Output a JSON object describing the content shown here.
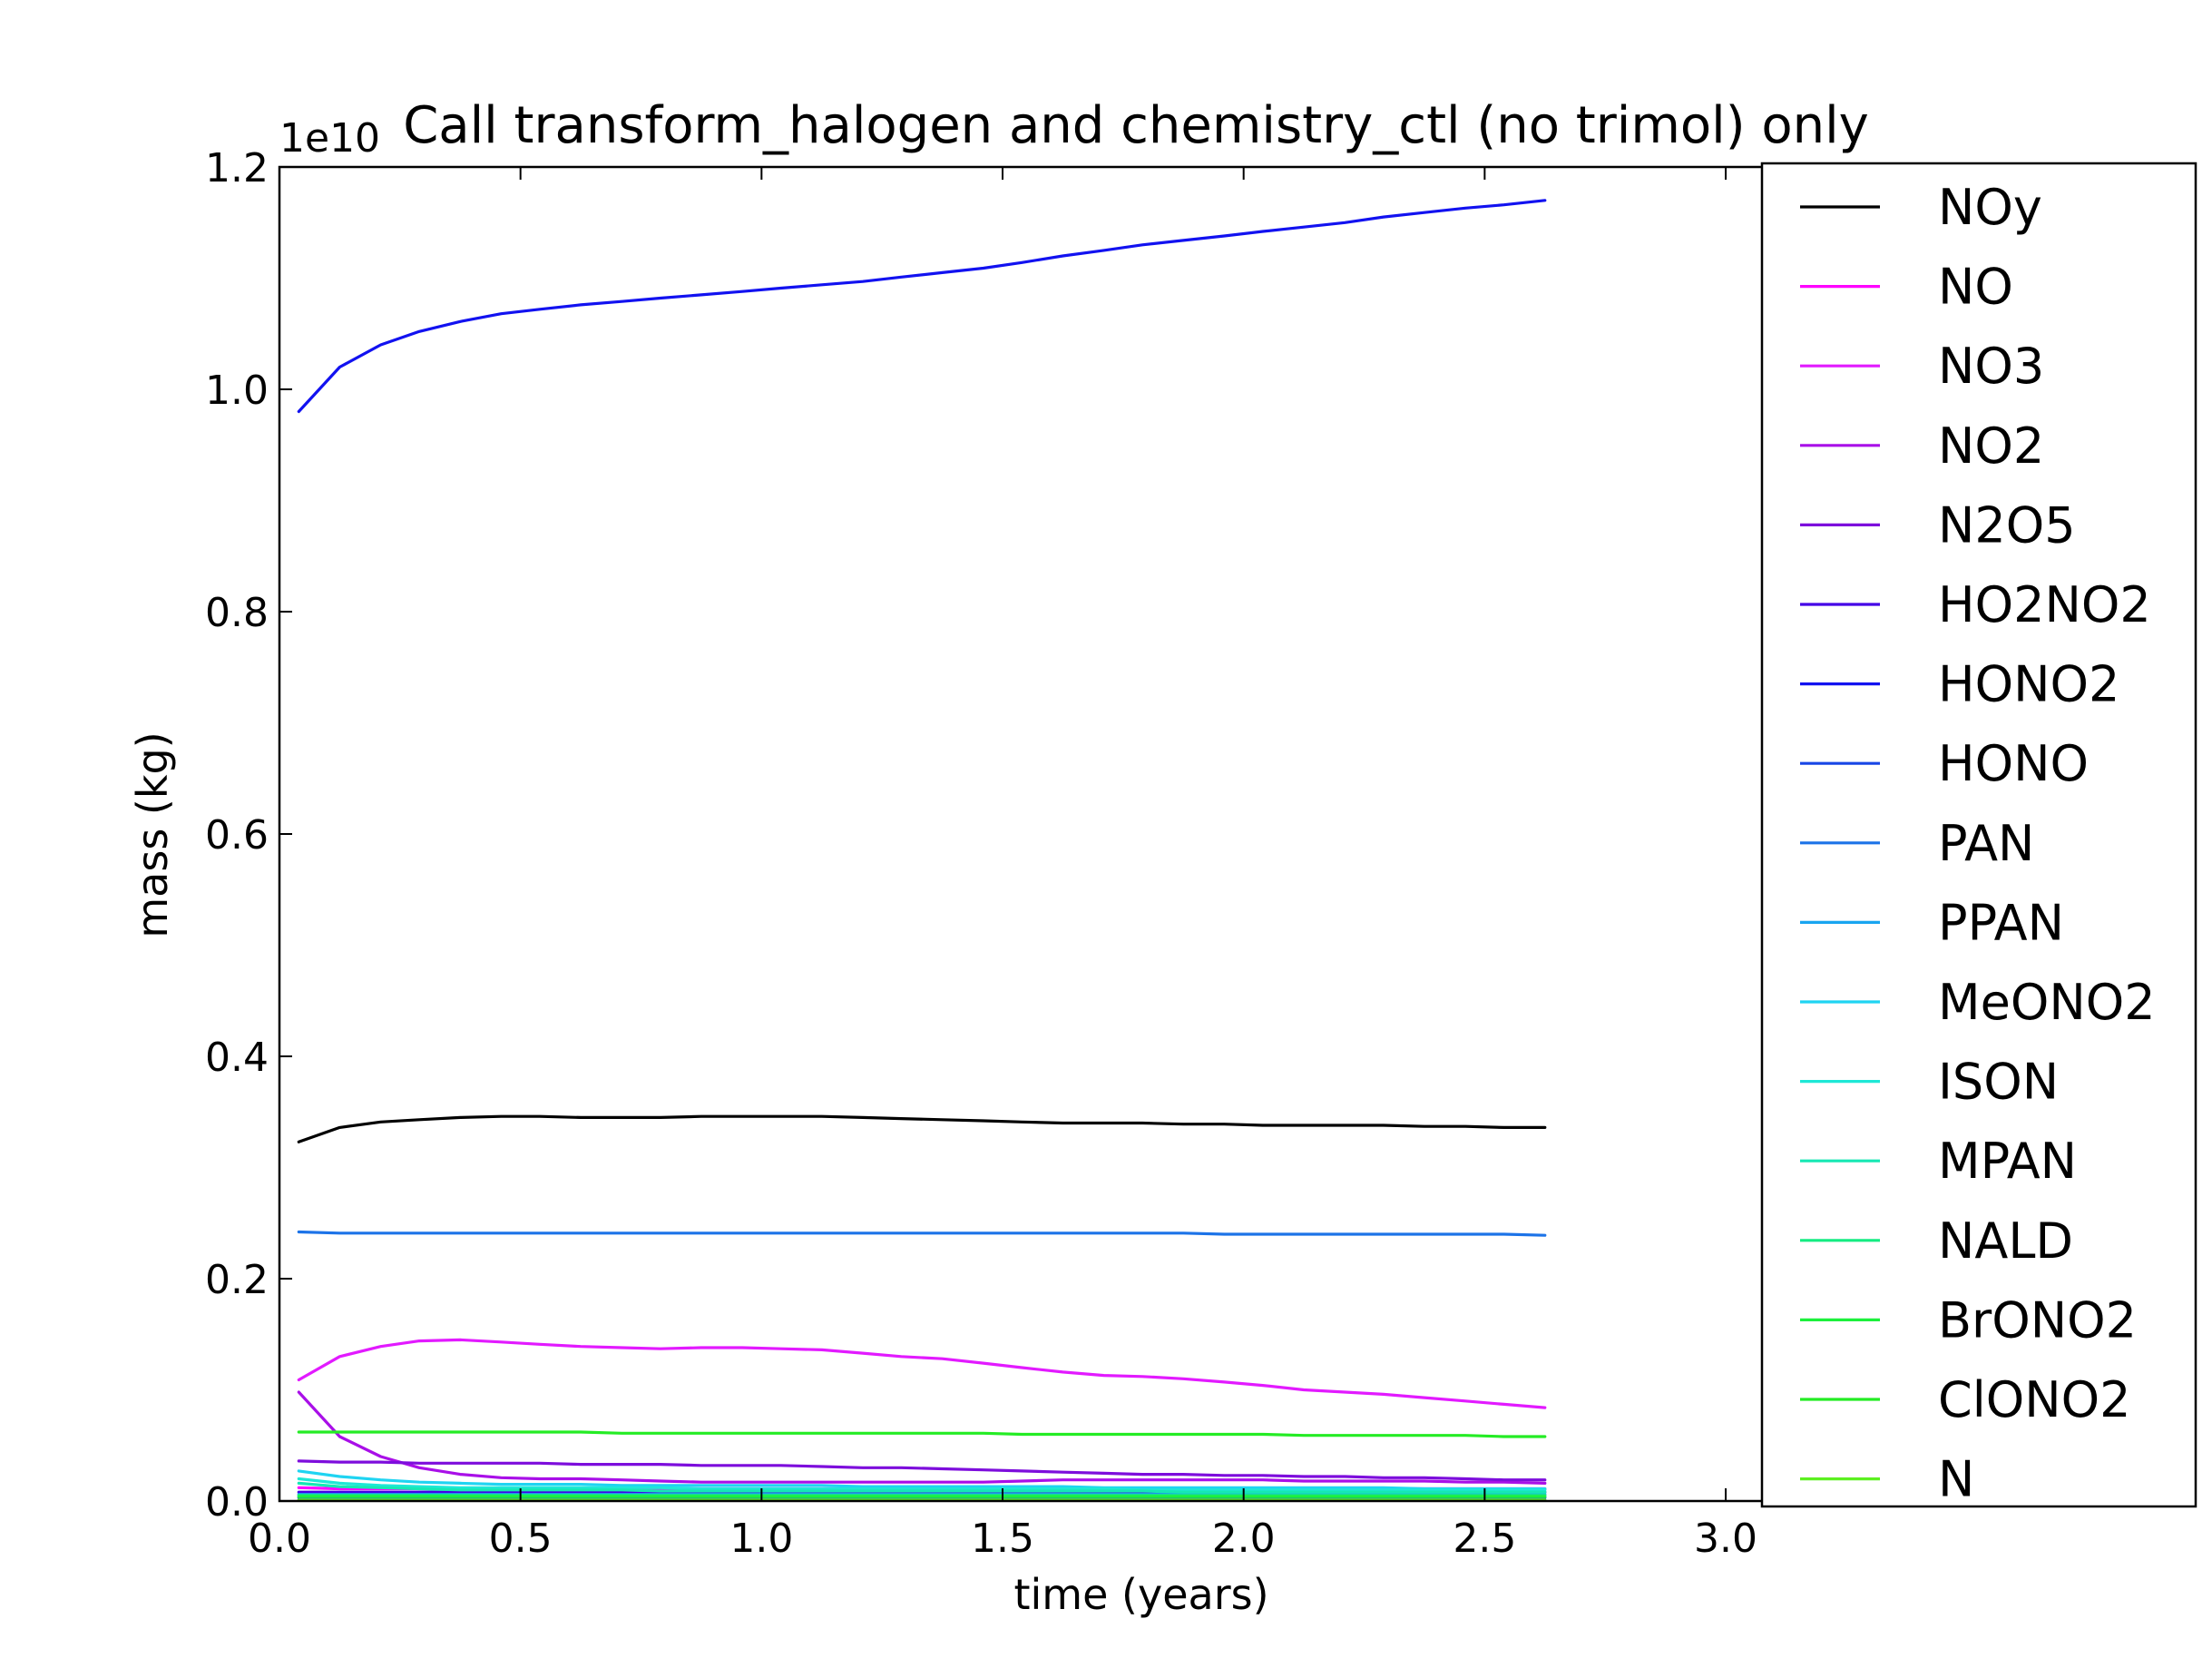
{
  "chart_data": {
    "type": "line",
    "title": "Call transform_halogen and chemistry_ctl (no trimol) only",
    "xlabel": "time (years)",
    "ylabel": "mass (kg)",
    "y_offset_text": "1e10",
    "xlim": [
      0.0,
      3.35
    ],
    "ylim": [
      0.0,
      1.2
    ],
    "xticks": [
      0.0,
      0.5,
      1.0,
      1.5,
      2.0,
      2.5,
      3.0
    ],
    "xtick_labels": [
      "0.0",
      "0.5",
      "1.0",
      "1.5",
      "2.0",
      "2.5",
      "3.0"
    ],
    "yticks": [
      0.0,
      0.2,
      0.4,
      0.6,
      0.8,
      1.0,
      1.2
    ],
    "ytick_labels": [
      "0.0",
      "0.2",
      "0.4",
      "0.6",
      "0.8",
      "1.0",
      "1.2"
    ],
    "grid": false,
    "legend_position": "right, overlapping plot edge",
    "x": [
      0.04,
      0.125,
      0.21,
      0.29,
      0.375,
      0.46,
      0.54,
      0.625,
      0.71,
      0.79,
      0.875,
      0.96,
      1.04,
      1.125,
      1.21,
      1.29,
      1.375,
      1.46,
      1.54,
      1.625,
      1.71,
      1.79,
      1.875,
      1.96,
      2.04,
      2.125,
      2.21,
      2.29,
      2.375,
      2.46,
      2.54,
      2.625
    ],
    "series": [
      {
        "name": "NOy",
        "color": "#000000",
        "values": [
          0.323,
          0.336,
          0.341,
          0.343,
          0.345,
          0.346,
          0.346,
          0.345,
          0.345,
          0.345,
          0.346,
          0.346,
          0.346,
          0.346,
          0.345,
          0.344,
          0.343,
          0.342,
          0.341,
          0.34,
          0.34,
          0.34,
          0.339,
          0.339,
          0.338,
          0.338,
          0.338,
          0.338,
          0.337,
          0.337,
          0.336,
          0.336
        ]
      },
      {
        "name": "NO",
        "color": "#ff00ff",
        "values": [
          0.012,
          0.011,
          0.011,
          0.011,
          0.011,
          0.011,
          0.011,
          0.011,
          0.011,
          0.011,
          0.011,
          0.011,
          0.011,
          0.011,
          0.011,
          0.011,
          0.011,
          0.011,
          0.011,
          0.011,
          0.011,
          0.011,
          0.011,
          0.011,
          0.011,
          0.011,
          0.011,
          0.011,
          0.011,
          0.011,
          0.011,
          0.011
        ]
      },
      {
        "name": "NO3",
        "color": "#e21aff",
        "values": [
          0.109,
          0.13,
          0.139,
          0.144,
          0.145,
          0.143,
          0.141,
          0.139,
          0.138,
          0.137,
          0.138,
          0.138,
          0.137,
          0.136,
          0.133,
          0.13,
          0.128,
          0.124,
          0.12,
          0.116,
          0.113,
          0.112,
          0.11,
          0.107,
          0.104,
          0.1,
          0.098,
          0.096,
          0.093,
          0.09,
          0.087,
          0.084
        ]
      },
      {
        "name": "NO2",
        "color": "#a90fe8",
        "values": [
          0.098,
          0.058,
          0.04,
          0.03,
          0.024,
          0.021,
          0.02,
          0.02,
          0.019,
          0.018,
          0.017,
          0.017,
          0.017,
          0.017,
          0.017,
          0.017,
          0.017,
          0.017,
          0.018,
          0.019,
          0.019,
          0.019,
          0.019,
          0.019,
          0.019,
          0.018,
          0.018,
          0.018,
          0.018,
          0.017,
          0.017,
          0.016
        ]
      },
      {
        "name": "N2O5",
        "color": "#7d0ddc",
        "values": [
          0.036,
          0.035,
          0.035,
          0.034,
          0.034,
          0.034,
          0.034,
          0.033,
          0.033,
          0.033,
          0.032,
          0.032,
          0.032,
          0.031,
          0.03,
          0.03,
          0.029,
          0.028,
          0.027,
          0.026,
          0.025,
          0.024,
          0.024,
          0.023,
          0.023,
          0.022,
          0.022,
          0.021,
          0.021,
          0.02,
          0.019,
          0.019
        ]
      },
      {
        "name": "HO2NO2",
        "color": "#4400e6",
        "values": [
          0.008,
          0.008,
          0.008,
          0.008,
          0.008,
          0.008,
          0.008,
          0.008,
          0.008,
          0.008,
          0.008,
          0.008,
          0.008,
          0.008,
          0.008,
          0.008,
          0.008,
          0.008,
          0.008,
          0.008,
          0.008,
          0.008,
          0.008,
          0.008,
          0.008,
          0.008,
          0.008,
          0.008,
          0.008,
          0.008,
          0.008,
          0.008
        ]
      },
      {
        "name": "HONO2",
        "color": "#1212f0",
        "values": [
          0.98,
          1.02,
          1.04,
          1.052,
          1.061,
          1.068,
          1.072,
          1.076,
          1.079,
          1.082,
          1.085,
          1.088,
          1.091,
          1.094,
          1.097,
          1.101,
          1.105,
          1.109,
          1.114,
          1.12,
          1.125,
          1.13,
          1.134,
          1.138,
          1.142,
          1.146,
          1.15,
          1.155,
          1.159,
          1.163,
          1.166,
          1.17
        ]
      },
      {
        "name": "HONO",
        "color": "#1846e6",
        "values": [
          0.003,
          0.003,
          0.003,
          0.003,
          0.003,
          0.003,
          0.003,
          0.003,
          0.003,
          0.003,
          0.003,
          0.003,
          0.003,
          0.003,
          0.003,
          0.003,
          0.003,
          0.003,
          0.003,
          0.003,
          0.003,
          0.003,
          0.003,
          0.003,
          0.003,
          0.003,
          0.003,
          0.003,
          0.003,
          0.003,
          0.003,
          0.003
        ]
      },
      {
        "name": "PAN",
        "color": "#1c73e8",
        "values": [
          0.242,
          0.241,
          0.241,
          0.241,
          0.241,
          0.241,
          0.241,
          0.241,
          0.241,
          0.241,
          0.241,
          0.241,
          0.241,
          0.241,
          0.241,
          0.241,
          0.241,
          0.241,
          0.241,
          0.241,
          0.241,
          0.241,
          0.241,
          0.24,
          0.24,
          0.24,
          0.24,
          0.24,
          0.24,
          0.24,
          0.24,
          0.239
        ]
      },
      {
        "name": "PPAN",
        "color": "#18a5f0",
        "values": [
          0.006,
          0.006,
          0.006,
          0.006,
          0.006,
          0.006,
          0.006,
          0.006,
          0.006,
          0.006,
          0.006,
          0.006,
          0.006,
          0.006,
          0.006,
          0.006,
          0.006,
          0.006,
          0.006,
          0.006,
          0.006,
          0.006,
          0.006,
          0.006,
          0.006,
          0.006,
          0.006,
          0.006,
          0.006,
          0.006,
          0.006,
          0.006
        ]
      },
      {
        "name": "MeONO2",
        "color": "#1fd4f2",
        "values": [
          0.027,
          0.022,
          0.019,
          0.017,
          0.016,
          0.015,
          0.015,
          0.015,
          0.014,
          0.014,
          0.014,
          0.014,
          0.014,
          0.014,
          0.013,
          0.013,
          0.013,
          0.013,
          0.013,
          0.013,
          0.012,
          0.012,
          0.012,
          0.012,
          0.012,
          0.012,
          0.012,
          0.012,
          0.011,
          0.011,
          0.011,
          0.011
        ]
      },
      {
        "name": "ISON",
        "color": "#1ee8d6",
        "values": [
          0.02,
          0.016,
          0.014,
          0.013,
          0.012,
          0.012,
          0.012,
          0.012,
          0.012,
          0.012,
          0.011,
          0.011,
          0.011,
          0.011,
          0.011,
          0.011,
          0.011,
          0.011,
          0.011,
          0.011,
          0.011,
          0.01,
          0.01,
          0.01,
          0.01,
          0.01,
          0.01,
          0.01,
          0.01,
          0.01,
          0.01,
          0.01
        ]
      },
      {
        "name": "MPAN",
        "color": "#16e8b4",
        "values": [
          0.016,
          0.013,
          0.012,
          0.011,
          0.01,
          0.01,
          0.01,
          0.01,
          0.01,
          0.009,
          0.009,
          0.009,
          0.009,
          0.009,
          0.009,
          0.009,
          0.009,
          0.009,
          0.009,
          0.009,
          0.009,
          0.009,
          0.008,
          0.008,
          0.008,
          0.008,
          0.008,
          0.008,
          0.008,
          0.008,
          0.008,
          0.008
        ]
      },
      {
        "name": "NALD",
        "color": "#14ec82",
        "values": [
          0.005,
          0.005,
          0.005,
          0.005,
          0.005,
          0.005,
          0.005,
          0.005,
          0.005,
          0.005,
          0.005,
          0.005,
          0.005,
          0.005,
          0.005,
          0.005,
          0.005,
          0.005,
          0.005,
          0.005,
          0.005,
          0.005,
          0.005,
          0.005,
          0.005,
          0.005,
          0.005,
          0.005,
          0.005,
          0.005,
          0.005,
          0.005
        ]
      },
      {
        "name": "BrONO2",
        "color": "#1cf03c",
        "values": [
          0.004,
          0.004,
          0.004,
          0.004,
          0.004,
          0.004,
          0.004,
          0.004,
          0.004,
          0.004,
          0.004,
          0.004,
          0.004,
          0.004,
          0.004,
          0.004,
          0.004,
          0.004,
          0.004,
          0.004,
          0.004,
          0.004,
          0.004,
          0.004,
          0.004,
          0.004,
          0.004,
          0.004,
          0.004,
          0.004,
          0.004,
          0.004
        ]
      },
      {
        "name": "ClONO2",
        "color": "#24ec24",
        "values": [
          0.062,
          0.062,
          0.062,
          0.062,
          0.062,
          0.062,
          0.062,
          0.062,
          0.061,
          0.061,
          0.061,
          0.061,
          0.061,
          0.061,
          0.061,
          0.061,
          0.061,
          0.061,
          0.06,
          0.06,
          0.06,
          0.06,
          0.06,
          0.06,
          0.06,
          0.059,
          0.059,
          0.059,
          0.059,
          0.059,
          0.058,
          0.058
        ]
      },
      {
        "name": "N",
        "color": "#5cf020",
        "values": [
          0.001,
          0.001,
          0.001,
          0.001,
          0.001,
          0.001,
          0.001,
          0.001,
          0.001,
          0.001,
          0.001,
          0.001,
          0.001,
          0.001,
          0.001,
          0.001,
          0.001,
          0.001,
          0.001,
          0.001,
          0.001,
          0.001,
          0.001,
          0.001,
          0.001,
          0.001,
          0.001,
          0.001,
          0.001,
          0.001,
          0.001,
          0.001
        ]
      }
    ]
  }
}
